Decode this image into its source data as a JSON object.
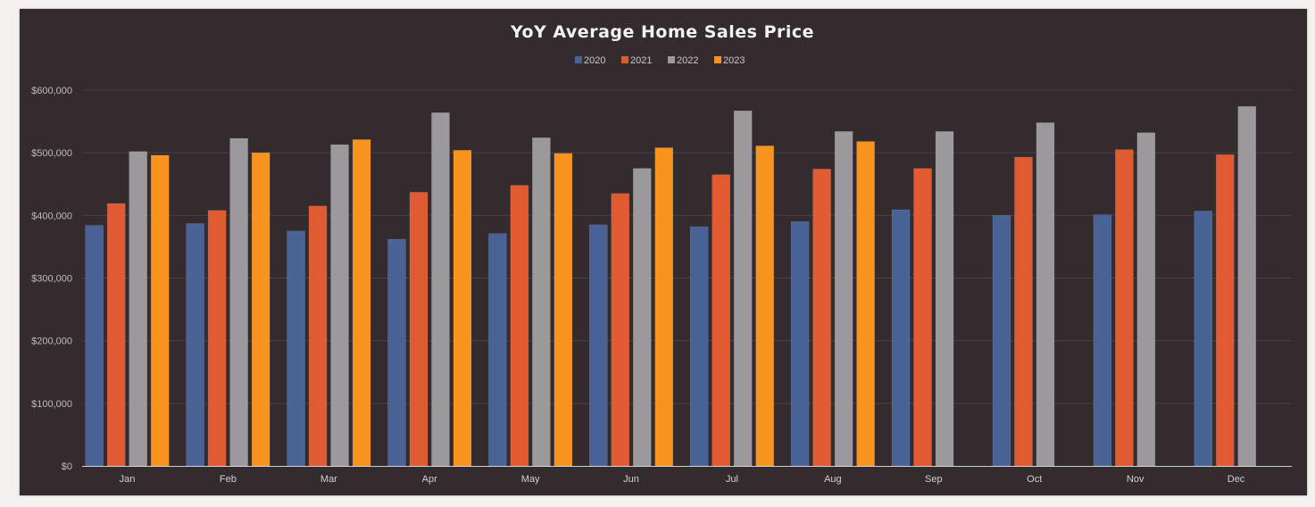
{
  "chart_data": {
    "type": "bar",
    "title": "YoY Average Home Sales Price",
    "xlabel": "",
    "ylabel": "",
    "categories": [
      "Jan",
      "Feb",
      "Mar",
      "Apr",
      "May",
      "Jun",
      "Jul",
      "Aug",
      "Sep",
      "Oct",
      "Nov",
      "Dec"
    ],
    "series": [
      {
        "name": "2020",
        "color": "#4a6396",
        "values": [
          384000,
          387000,
          375000,
          362000,
          371000,
          385000,
          382000,
          390000,
          409000,
          400000,
          401000,
          407000
        ]
      },
      {
        "name": "2021",
        "color": "#e05a32",
        "values": [
          419000,
          408000,
          415000,
          437000,
          448000,
          435000,
          465000,
          474000,
          475000,
          493000,
          505000,
          497000
        ]
      },
      {
        "name": "2022",
        "color": "#9b999b",
        "values": [
          502000,
          523000,
          513000,
          564000,
          524000,
          475000,
          567000,
          534000,
          534000,
          548000,
          532000,
          574000
        ]
      },
      {
        "name": "2023",
        "color": "#f7931e",
        "values": [
          496000,
          500000,
          521000,
          504000,
          499000,
          508000,
          511000,
          518000,
          null,
          null,
          null,
          null
        ]
      }
    ],
    "ylim": [
      0,
      600000
    ],
    "yticks": [
      "$0",
      "$100,000",
      "$200,000",
      "$300,000",
      "$400,000",
      "$500,000",
      "$600,000"
    ],
    "grid": true,
    "legend_position": "top-center",
    "background_color": "#332b2d"
  }
}
